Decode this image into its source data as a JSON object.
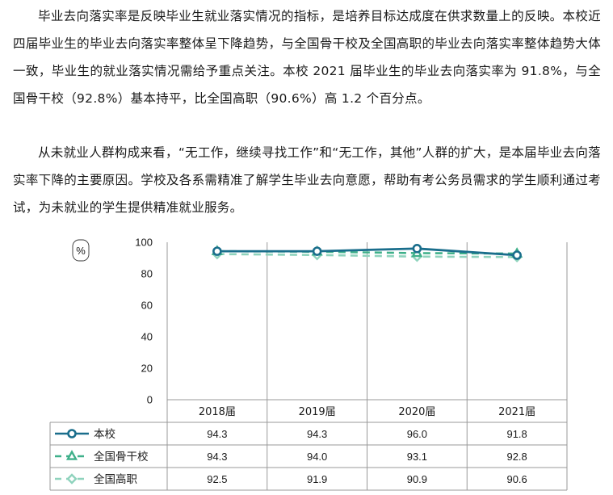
{
  "paragraphs": [
    "毕业去向落实率是反映毕业生就业落实情况的指标，是培养目标达成度在供求数量上的反映。本校近四届毕业生的毕业去向落实率整体呈下降趋势，与全国骨干校及全国高职的毕业去向落实率整体趋势大体一致，毕业生的就业落实情况需给予重点关注。本校 2021 届毕业生的毕业去向落实率为 91.8%，与全国骨干校（92.8%）基本持平，比全国高职（90.6%）高 1.2 个百分点。",
    "从未就业人群构成来看，“无工作，继续寻找工作”和“无工作，其他”人群的扩大，是本届毕业去向落实率下降的主要原因。学校及各系需精准了解学生毕业去向意愿，帮助有考公务员需求的学生顺利通过考试，为未就业的学生提供精准就业服务。"
  ],
  "chart_data": {
    "type": "line",
    "categories": [
      "2018届",
      "2019届",
      "2020届",
      "2021届"
    ],
    "ylabel": "%",
    "ylim": [
      0,
      100
    ],
    "yticks": [
      0,
      20,
      40,
      60,
      80,
      100
    ],
    "series": [
      {
        "name": "本校",
        "values": [
          94.3,
          94.3,
          96.0,
          91.8
        ],
        "value_labels": [
          "94.3",
          "94.3",
          "96.0",
          "91.8"
        ],
        "color": "#1a6e8c",
        "marker": "circle",
        "dash": false
      },
      {
        "name": "全国骨干校",
        "values": [
          94.3,
          94.0,
          93.1,
          92.8
        ],
        "value_labels": [
          "94.3",
          "94.0",
          "93.1",
          "92.8"
        ],
        "color": "#3fb08a",
        "marker": "triangle",
        "dash": true
      },
      {
        "name": "全国高职",
        "values": [
          92.5,
          91.9,
          90.9,
          90.6
        ],
        "value_labels": [
          "92.5",
          "91.9",
          "90.9",
          "90.6"
        ],
        "color": "#8fd3bd",
        "marker": "diamond",
        "dash": true
      }
    ],
    "legend": "data-table-left",
    "grid": false
  }
}
